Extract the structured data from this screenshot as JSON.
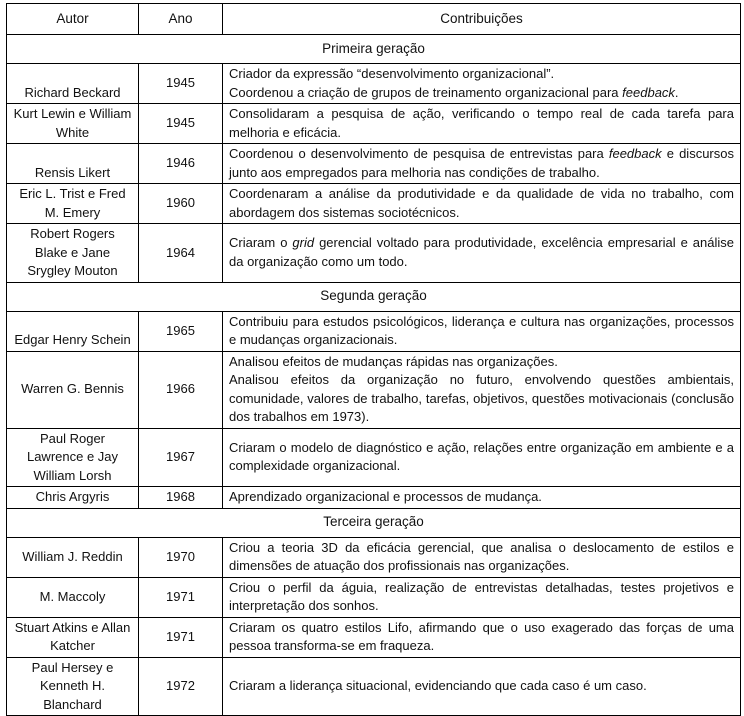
{
  "table": {
    "headers": [
      "Autor",
      "Ano",
      "Contribuições"
    ],
    "sections": [
      {
        "title": "Primeira geração",
        "rows": [
          {
            "autor": "Richard Beckard",
            "ano": "1945",
            "autor_bottom": true,
            "contrib": [
              [
                {
                  "t": "Criador da expressão “desenvolvimento organizacional”."
                }
              ],
              [
                {
                  "t": "Coordenou a criação de grupos de treinamento organizacional para "
                },
                {
                  "t": "feedback",
                  "i": true
                },
                {
                  "t": "."
                }
              ]
            ]
          },
          {
            "autor": "Kurt Lewin e William White",
            "ano": "1945",
            "contrib": [
              [
                {
                  "t": "Consolidaram a pesquisa de ação, verificando o tempo real de cada tarefa para melhoria e eficácia."
                }
              ]
            ]
          },
          {
            "autor": "Rensis Likert",
            "ano": "1946",
            "autor_bottom": true,
            "contrib": [
              [
                {
                  "t": "Coordenou o desenvolvimento de pesquisa de entrevistas para "
                },
                {
                  "t": "feedback",
                  "i": true
                },
                {
                  "t": " e discursos junto aos empregados para melhoria nas condições de trabalho."
                }
              ]
            ]
          },
          {
            "autor": "Eric L. Trist e Fred M. Emery",
            "ano": "1960",
            "contrib": [
              [
                {
                  "t": "Coordenaram a análise da produtividade e da qualidade de vida no trabalho, com abordagem dos sistemas sociotécnicos."
                }
              ]
            ]
          },
          {
            "autor": "Robert Rogers Blake e Jane Srygley Mouton",
            "ano": "1964",
            "contrib": [
              [
                {
                  "t": "Criaram o "
                },
                {
                  "t": "grid",
                  "i": true
                },
                {
                  "t": " gerencial voltado para produtividade, excelência empresarial e análise da organização como um todo."
                }
              ]
            ]
          }
        ]
      },
      {
        "title": "Segunda geração",
        "rows": [
          {
            "autor": "Edgar Henry Schein",
            "ano": "1965",
            "autor_bottom": true,
            "contrib": [
              [
                {
                  "t": "Contribuiu para estudos psicológicos, liderança e cultura nas organizações, processos e mudanças organizacionais."
                }
              ]
            ]
          },
          {
            "autor": "Warren G. Bennis",
            "ano": "1966",
            "contrib": [
              [
                {
                  "t": "Analisou efeitos de mudanças rápidas nas organizações."
                }
              ],
              [
                {
                  "t": "Analisou efeitos da organização no futuro, envolvendo questões ambientais, comunidade, valores de trabalho, tarefas, objetivos, questões motivacionais (conclusão dos trabalhos em 1973)."
                }
              ]
            ]
          },
          {
            "autor": "Paul Roger Lawrence e Jay William Lorsh",
            "ano": "1967",
            "contrib": [
              [
                {
                  "t": "Criaram o modelo de diagnóstico e ação, relações entre organização em ambiente e a complexidade organizacional."
                }
              ]
            ]
          },
          {
            "autor": "Chris Argyris",
            "ano": "1968",
            "contrib": [
              [
                {
                  "t": "Aprendizado organizacional e processos de mudança."
                }
              ]
            ]
          }
        ]
      },
      {
        "title": "Terceira geração",
        "rows": [
          {
            "autor": "William J. Reddin",
            "ano": "1970",
            "contrib": [
              [
                {
                  "t": "Criou a teoria 3D da eficácia gerencial, que analisa o deslocamento de estilos e dimensões de atuação dos profissionais nas organizações."
                }
              ]
            ]
          },
          {
            "autor": "M. Maccoly",
            "ano": "1971",
            "contrib": [
              [
                {
                  "t": "Criou o perfil da águia, realização de entrevistas detalhadas, testes projetivos e interpretação dos sonhos."
                }
              ]
            ]
          },
          {
            "autor": "Stuart Atkins e Allan Katcher",
            "ano": "1971",
            "contrib": [
              [
                {
                  "t": "Criaram os quatro estilos Lifo, afirmando que o uso exagerado das forças de uma pessoa transforma-se em fraqueza."
                }
              ]
            ]
          },
          {
            "autor": "Paul Hersey e Kenneth H. Blanchard",
            "ano": "1972",
            "contrib": [
              [
                {
                  "t": "Criaram a liderança situacional, evidenciando que cada caso é um caso."
                }
              ]
            ]
          }
        ]
      }
    ]
  }
}
